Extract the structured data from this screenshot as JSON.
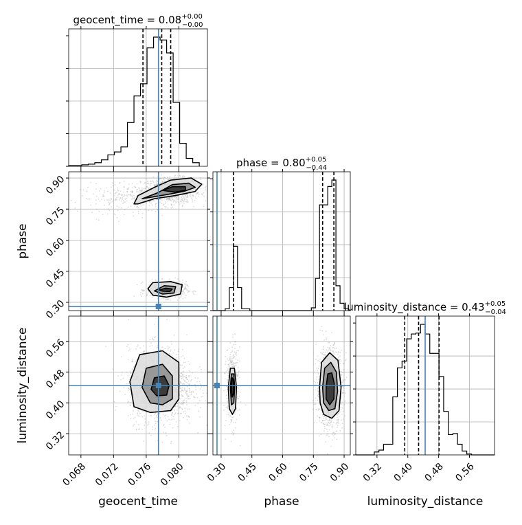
{
  "chart_data": {
    "type": "corner",
    "parameters": [
      "geocent_time",
      "phase",
      "luminosity_distance"
    ],
    "truths": {
      "geocent_time": 0.0775,
      "phase": 0.28,
      "luminosity_distance": 0.445
    },
    "titles": [
      {
        "param": "geocent_time",
        "text": "geocent_time = 0.08",
        "sup": "+0.00",
        "sub": "−0.00"
      },
      {
        "param": "phase",
        "text": "phase = 0.80",
        "sup": "+0.05",
        "sub": "−0.44"
      },
      {
        "param": "luminosity_distance",
        "text": "luminosity_distance = 0.43",
        "sup": "+0.05",
        "sub": "−0.04"
      }
    ],
    "axes": {
      "geocent_time": {
        "range": [
          0.0665,
          0.0835
        ],
        "ticks": [
          "0.068",
          "0.072",
          "0.076",
          "0.080"
        ],
        "tickvals": [
          0.068,
          0.072,
          0.076,
          0.08
        ]
      },
      "phase": {
        "range": [
          0.26,
          0.93
        ],
        "ticks": [
          "0.30",
          "0.45",
          "0.60",
          "0.75",
          "0.90"
        ],
        "tickvals": [
          0.3,
          0.45,
          0.6,
          0.75,
          0.9
        ]
      },
      "luminosity_distance": {
        "range": [
          0.265,
          0.625
        ],
        "ticks": [
          "0.32",
          "0.40",
          "0.48",
          "0.56"
        ],
        "tickvals": [
          0.32,
          0.4,
          0.48,
          0.56
        ]
      }
    },
    "marginals": {
      "geocent_time": {
        "bin_edges": [
          0.0665,
          0.0673,
          0.0681,
          0.0689,
          0.0697,
          0.0705,
          0.0713,
          0.0721,
          0.0729,
          0.0737,
          0.0745,
          0.0753,
          0.0761,
          0.0769,
          0.0777,
          0.0785,
          0.0793,
          0.0801,
          0.0809,
          0.0817,
          0.0825
        ],
        "heights": [
          1,
          1,
          2,
          3,
          5,
          9,
          16,
          20,
          27,
          61,
          98,
          115,
          165,
          180,
          176,
          158,
          89,
          32,
          11,
          5
        ],
        "quantiles": [
          0.0756,
          0.0779,
          0.079
        ]
      },
      "phase": {
        "bin_edges": [
          0.26,
          0.28,
          0.3,
          0.32,
          0.34,
          0.36,
          0.38,
          0.4,
          0.42,
          0.44,
          0.46,
          0.48,
          0.5,
          0.52,
          0.54,
          0.56,
          0.58,
          0.6,
          0.62,
          0.64,
          0.66,
          0.68,
          0.7,
          0.72,
          0.74,
          0.76,
          0.78,
          0.8,
          0.82,
          0.84,
          0.86,
          0.88,
          0.9,
          0.92
        ],
        "heights": [
          0,
          0,
          0,
          2,
          25,
          70,
          25,
          2,
          2,
          0,
          0,
          0,
          0,
          0,
          0,
          0,
          0,
          0,
          0,
          0,
          0,
          0,
          0,
          0,
          3,
          35,
          115,
          115,
          135,
          142,
          27,
          8,
          2
        ],
        "quantiles": [
          0.36,
          0.795,
          0.85
        ]
      },
      "luminosity_distance": {
        "bin_edges": [
          0.265,
          0.277,
          0.289,
          0.301,
          0.313,
          0.325,
          0.337,
          0.349,
          0.361,
          0.373,
          0.385,
          0.397,
          0.409,
          0.421,
          0.433,
          0.445,
          0.457,
          0.469,
          0.481,
          0.493,
          0.505,
          0.517,
          0.529,
          0.541,
          0.553,
          0.565,
          0.577,
          0.589,
          0.601,
          0.613,
          0.625
        ],
        "heights": [
          0,
          0,
          0,
          0,
          3,
          5,
          11,
          11,
          60,
          90,
          97,
          120,
          125,
          126,
          135,
          125,
          105,
          105,
          81,
          45,
          21,
          22,
          11,
          4,
          1,
          0,
          0,
          0,
          0,
          0
        ],
        "quantiles": [
          0.392,
          0.428,
          0.481
        ]
      }
    },
    "contours": {
      "phase_vs_geocent_time": [
        {
          "level": 1,
          "loops": [
            [
              [
                0.0745,
                0.775
              ],
              [
                0.075,
                0.815
              ],
              [
                0.077,
                0.855
              ],
              [
                0.079,
                0.89
              ],
              [
                0.0815,
                0.9
              ],
              [
                0.0828,
                0.87
              ],
              [
                0.082,
                0.835
              ],
              [
                0.0795,
                0.815
              ],
              [
                0.077,
                0.8
              ],
              [
                0.075,
                0.775
              ]
            ],
            [
              [
                0.0762,
                0.365
              ],
              [
                0.0768,
                0.395
              ],
              [
                0.079,
                0.4
              ],
              [
                0.0804,
                0.385
              ],
              [
                0.0802,
                0.34
              ],
              [
                0.0785,
                0.325
              ],
              [
                0.0768,
                0.335
              ]
            ]
          ]
        },
        {
          "level": 2,
          "loops": [
            [
              [
                0.0755,
                0.8
              ],
              [
                0.0775,
                0.83
              ],
              [
                0.0792,
                0.868
              ],
              [
                0.0812,
                0.875
              ],
              [
                0.082,
                0.855
              ],
              [
                0.0806,
                0.835
              ],
              [
                0.0785,
                0.82
              ]
            ],
            [
              [
                0.077,
                0.355
              ],
              [
                0.0782,
                0.38
              ],
              [
                0.0796,
                0.376
              ],
              [
                0.0794,
                0.345
              ],
              [
                0.078,
                0.34
              ]
            ]
          ]
        },
        {
          "level": 3,
          "loops": [
            [
              [
                0.078,
                0.84
              ],
              [
                0.0792,
                0.858
              ],
              [
                0.0808,
                0.858
              ],
              [
                0.0808,
                0.84
              ],
              [
                0.0795,
                0.832
              ]
            ],
            [
              [
                0.0776,
                0.36
              ],
              [
                0.0784,
                0.368
              ],
              [
                0.0792,
                0.364
              ],
              [
                0.0789,
                0.352
              ],
              [
                0.078,
                0.354
              ]
            ]
          ]
        }
      ],
      "luminosity_distance_vs_geocent_time": [
        {
          "level": 1,
          "loops": [
            [
              [
                0.074,
                0.455
              ],
              [
                0.0752,
                0.525
              ],
              [
                0.078,
                0.535
              ],
              [
                0.08,
                0.505
              ],
              [
                0.08,
                0.41
              ],
              [
                0.079,
                0.38
              ],
              [
                0.0765,
                0.375
              ],
              [
                0.0745,
                0.39
              ]
            ]
          ]
        },
        {
          "level": 2,
          "loops": [
            [
              [
                0.0755,
                0.44
              ],
              [
                0.076,
                0.49
              ],
              [
                0.078,
                0.5
              ],
              [
                0.0792,
                0.47
              ],
              [
                0.0792,
                0.41
              ],
              [
                0.078,
                0.395
              ],
              [
                0.0765,
                0.4
              ]
            ]
          ]
        },
        {
          "level": 3,
          "loops": [
            [
              [
                0.0766,
                0.435
              ],
              [
                0.077,
                0.465
              ],
              [
                0.0782,
                0.47
              ],
              [
                0.0788,
                0.445
              ],
              [
                0.0785,
                0.42
              ],
              [
                0.0773,
                0.418
              ]
            ]
          ]
        }
      ],
      "luminosity_distance_vs_phase": [
        {
          "level": 1,
          "loops": [
            [
              [
                0.335,
                0.44
              ],
              [
                0.345,
                0.49
              ],
              [
                0.365,
                0.49
              ],
              [
                0.375,
                0.44
              ],
              [
                0.37,
                0.385
              ],
              [
                0.355,
                0.37
              ],
              [
                0.34,
                0.385
              ]
            ],
            [
              [
                0.78,
                0.44
              ],
              [
                0.79,
                0.505
              ],
              [
                0.83,
                0.53
              ],
              [
                0.87,
                0.51
              ],
              [
                0.885,
                0.44
              ],
              [
                0.875,
                0.38
              ],
              [
                0.84,
                0.36
              ],
              [
                0.8,
                0.37
              ],
              [
                0.783,
                0.4
              ]
            ]
          ]
        },
        {
          "level": 2,
          "loops": [
            [
              [
                0.345,
                0.44
              ],
              [
                0.35,
                0.475
              ],
              [
                0.362,
                0.475
              ],
              [
                0.366,
                0.44
              ],
              [
                0.362,
                0.4
              ],
              [
                0.35,
                0.395
              ]
            ],
            [
              [
                0.795,
                0.44
              ],
              [
                0.805,
                0.49
              ],
              [
                0.835,
                0.505
              ],
              [
                0.862,
                0.48
              ],
              [
                0.868,
                0.43
              ],
              [
                0.855,
                0.385
              ],
              [
                0.825,
                0.38
              ],
              [
                0.8,
                0.4
              ]
            ]
          ]
        },
        {
          "level": 3,
          "loops": [
            [
              [
                0.35,
                0.44
              ],
              [
                0.354,
                0.465
              ],
              [
                0.36,
                0.46
              ],
              [
                0.361,
                0.425
              ],
              [
                0.354,
                0.415
              ]
            ],
            [
              [
                0.812,
                0.44
              ],
              [
                0.82,
                0.475
              ],
              [
                0.84,
                0.478
              ],
              [
                0.852,
                0.45
              ],
              [
                0.85,
                0.41
              ],
              [
                0.83,
                0.395
              ],
              [
                0.812,
                0.41
              ]
            ]
          ]
        }
      ]
    },
    "axis_labels": {
      "x": [
        "geocent_time",
        "phase",
        "luminosity_distance"
      ],
      "y": [
        "phase",
        "luminosity_distance"
      ]
    },
    "grid": true,
    "truth_color": "#4682b4",
    "quantile_style": "dashed",
    "colors": {
      "truth": "#4682b4",
      "hist": "#000000",
      "grid": "#b0b0b0",
      "points": "#999999"
    }
  }
}
